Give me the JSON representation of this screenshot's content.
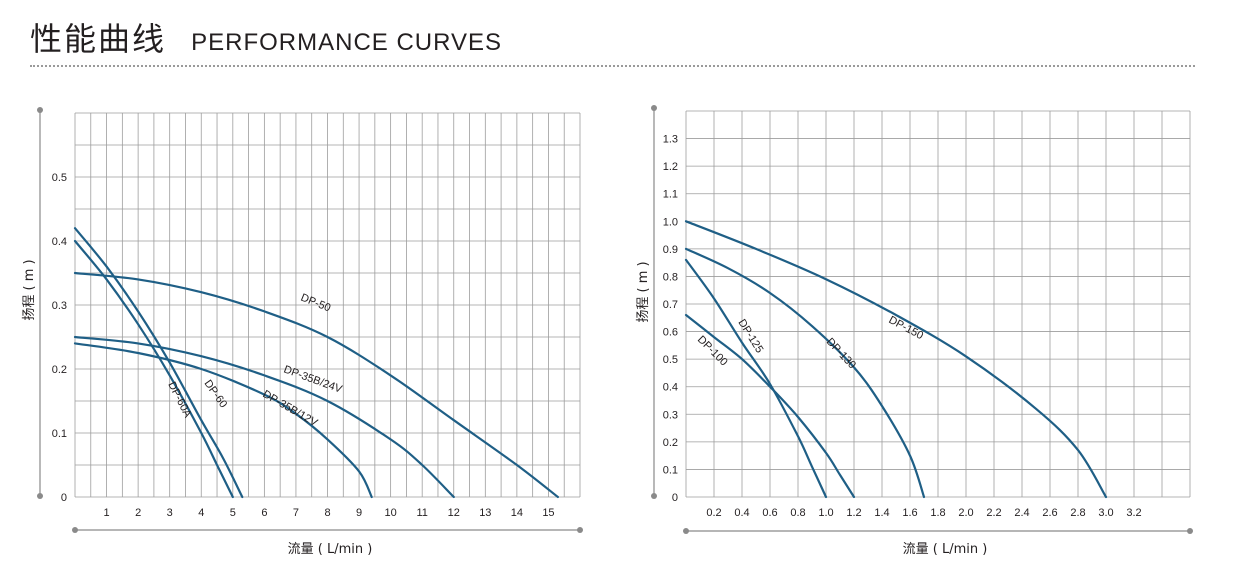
{
  "header": {
    "title_cn": "性能曲线",
    "title_en": "PERFORMANCE  CURVES"
  },
  "colors": {
    "curve": "#1f5f86",
    "grid": "#9d9d9d",
    "axis": "#8a8a8a",
    "text": "#231f20"
  },
  "chart_data": [
    {
      "type": "line",
      "xlabel": "流量 ( L/min )",
      "ylabel": "扬程 ( m )",
      "xlim": [
        0,
        16
      ],
      "ylim": [
        0,
        0.6
      ],
      "xticks": [
        1,
        2,
        3,
        4,
        5,
        6,
        7,
        8,
        9,
        10,
        11,
        12,
        13,
        14,
        15
      ],
      "xtick_labels": [
        "1",
        "2",
        "3",
        "4",
        "5",
        "6",
        "7",
        "8",
        "9",
        "10",
        "11",
        "12",
        "13",
        "14",
        "15"
      ],
      "yticks": [
        0,
        0.1,
        0.2,
        0.3,
        0.4,
        0.5
      ],
      "ytick_labels": [
        "0",
        "0.1",
        "0.2",
        "0.3",
        "0.4",
        "0.5"
      ],
      "grid": true,
      "series": [
        {
          "name": "DP-60A",
          "points": [
            [
              0,
              0.4
            ],
            [
              1,
              0.34
            ],
            [
              2,
              0.27
            ],
            [
              3,
              0.19
            ],
            [
              4,
              0.1
            ],
            [
              4.5,
              0.05
            ],
            [
              5,
              0
            ]
          ]
        },
        {
          "name": "DP-60",
          "points": [
            [
              0,
              0.42
            ],
            [
              1,
              0.36
            ],
            [
              2,
              0.29
            ],
            [
              3,
              0.21
            ],
            [
              4,
              0.12
            ],
            [
              4.7,
              0.06
            ],
            [
              5.3,
              0
            ]
          ]
        },
        {
          "name": "DP-50",
          "points": [
            [
              0,
              0.35
            ],
            [
              2,
              0.34
            ],
            [
              4,
              0.32
            ],
            [
              6,
              0.29
            ],
            [
              8,
              0.25
            ],
            [
              10,
              0.19
            ],
            [
              12,
              0.12
            ],
            [
              14,
              0.05
            ],
            [
              15.3,
              0
            ]
          ]
        },
        {
          "name": "DP-35B/24V",
          "points": [
            [
              0,
              0.25
            ],
            [
              2,
              0.24
            ],
            [
              4,
              0.22
            ],
            [
              6,
              0.19
            ],
            [
              8,
              0.15
            ],
            [
              10,
              0.09
            ],
            [
              11,
              0.05
            ],
            [
              12,
              0
            ]
          ]
        },
        {
          "name": "DP-35B/12V",
          "points": [
            [
              0,
              0.24
            ],
            [
              2,
              0.225
            ],
            [
              4,
              0.2
            ],
            [
              6,
              0.16
            ],
            [
              7,
              0.13
            ],
            [
              8,
              0.09
            ],
            [
              9,
              0.04
            ],
            [
              9.4,
              0
            ]
          ]
        }
      ]
    },
    {
      "type": "line",
      "xlabel": "流量 ( L/min )",
      "ylabel": "扬程 ( m )",
      "xlim": [
        0,
        3.6
      ],
      "ylim": [
        0,
        1.4
      ],
      "xticks": [
        0.2,
        0.4,
        0.6,
        0.8,
        1.0,
        1.2,
        1.4,
        1.6,
        1.8,
        2.0,
        2.2,
        2.4,
        2.6,
        2.8,
        3.0,
        3.2
      ],
      "xtick_labels": [
        "0.2",
        "0.4",
        "0.6",
        "0.8",
        "1.0",
        "1.2",
        "1.4",
        "1.6",
        "1.8",
        "2.0",
        "2.2",
        "2.4",
        "2.6",
        "2.8",
        "3.0",
        "3.2"
      ],
      "yticks": [
        0,
        0.1,
        0.2,
        0.3,
        0.4,
        0.5,
        0.6,
        0.7,
        0.8,
        0.9,
        1.0,
        1.1,
        1.2,
        1.3
      ],
      "ytick_labels": [
        "0",
        "0.1",
        "0.2",
        "0.3",
        "0.4",
        "0.5",
        "0.6",
        "0.7",
        "0.8",
        "0.9",
        "1.0",
        "1.1",
        "1.2",
        "1.3"
      ],
      "grid": true,
      "series": [
        {
          "name": "DP-150",
          "points": [
            [
              0,
              1.0
            ],
            [
              0.5,
              0.9
            ],
            [
              1.0,
              0.79
            ],
            [
              1.5,
              0.66
            ],
            [
              2.0,
              0.51
            ],
            [
              2.5,
              0.32
            ],
            [
              2.8,
              0.17
            ],
            [
              3.0,
              0
            ]
          ]
        },
        {
          "name": "DP-130",
          "points": [
            [
              0,
              0.9
            ],
            [
              0.3,
              0.83
            ],
            [
              0.6,
              0.74
            ],
            [
              0.9,
              0.62
            ],
            [
              1.2,
              0.47
            ],
            [
              1.4,
              0.33
            ],
            [
              1.6,
              0.15
            ],
            [
              1.7,
              0
            ]
          ]
        },
        {
          "name": "DP-125",
          "points": [
            [
              0,
              0.86
            ],
            [
              0.2,
              0.72
            ],
            [
              0.4,
              0.56
            ],
            [
              0.6,
              0.41
            ],
            [
              0.8,
              0.22
            ],
            [
              0.9,
              0.11
            ],
            [
              1.0,
              0
            ]
          ]
        },
        {
          "name": "DP-100",
          "points": [
            [
              0,
              0.66
            ],
            [
              0.2,
              0.58
            ],
            [
              0.4,
              0.5
            ],
            [
              0.6,
              0.4
            ],
            [
              0.8,
              0.29
            ],
            [
              1.0,
              0.16
            ],
            [
              1.1,
              0.08
            ],
            [
              1.2,
              0
            ]
          ]
        }
      ]
    }
  ]
}
